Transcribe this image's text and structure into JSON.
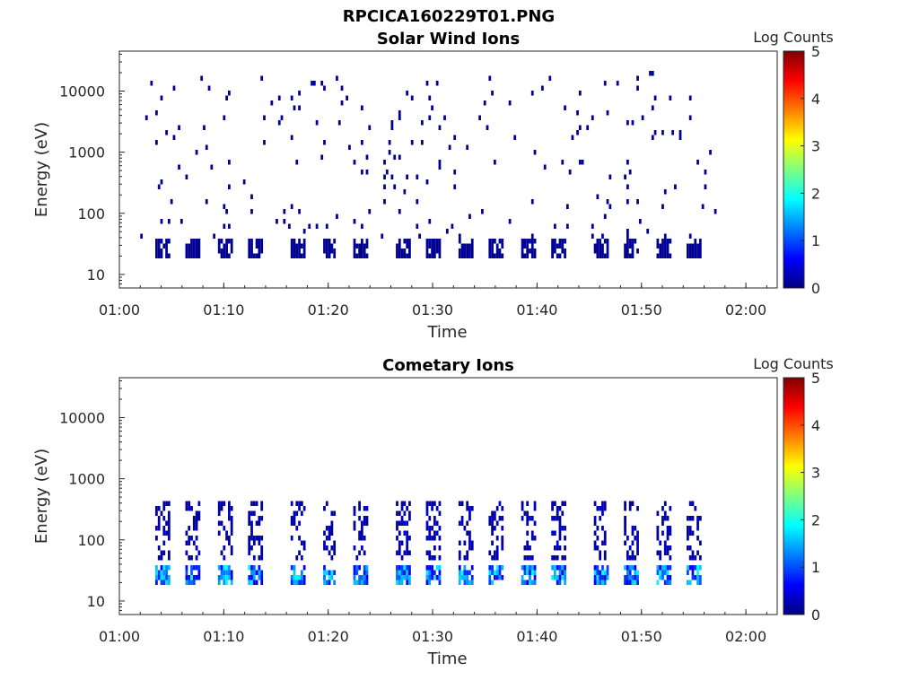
{
  "figure": {
    "title": "RPCICA160229T01.PNG"
  },
  "colorscale": [
    "#00007f",
    "#0000ff",
    "#007fff",
    "#00ffff",
    "#7fff7f",
    "#ffff00",
    "#ff7f00",
    "#ff0000",
    "#7f0000"
  ],
  "chart_data": [
    {
      "type": "heatmap",
      "title": "Solar Wind Ions",
      "xlabel": "Time",
      "ylabel": "Energy (eV)",
      "y_scale": "log",
      "ylim": [
        6,
        45000
      ],
      "xlim": [
        "01:00",
        "02:03"
      ],
      "x_ticks": [
        "01:00",
        "01:10",
        "01:20",
        "01:30",
        "01:40",
        "01:50",
        "02:00"
      ],
      "y_ticks": [
        "10",
        "100",
        "1000",
        "10000"
      ],
      "colorbar": {
        "title": "Log Counts",
        "min": 0,
        "max": 5,
        "ticks": [
          "0",
          "1",
          "2",
          "3",
          "4",
          "5"
        ]
      },
      "data_range": [
        "01:02",
        "01:57"
      ],
      "signal": {
        "low_band_energy_eV": [
          17,
          40
        ],
        "low_band_log_counts": 0.1,
        "sparse_energy_eV": [
          40,
          20000
        ],
        "sparse_log_counts": 0.1,
        "bursts": [
          "01:04",
          "01:07",
          "01:10",
          "01:13",
          "01:17",
          "01:20",
          "01:23",
          "01:27",
          "01:30",
          "01:33",
          "01:36",
          "01:39",
          "01:42",
          "01:46",
          "01:49",
          "01:52",
          "01:55"
        ]
      }
    },
    {
      "type": "heatmap",
      "title": "Cometary Ions",
      "xlabel": "Time",
      "ylabel": "Energy (eV)",
      "y_scale": "log",
      "ylim": [
        6,
        45000
      ],
      "xlim": [
        "01:00",
        "02:03"
      ],
      "x_ticks": [
        "01:00",
        "01:10",
        "01:20",
        "01:30",
        "01:40",
        "01:50",
        "02:00"
      ],
      "y_ticks": [
        "10",
        "100",
        "1000",
        "10000"
      ],
      "colorbar": {
        "title": "Log Counts",
        "min": 0,
        "max": 5,
        "ticks": [
          "0",
          "1",
          "2",
          "3",
          "4",
          "5"
        ]
      },
      "data_range": [
        "01:02",
        "01:57"
      ],
      "signal": {
        "low_band_energy_eV": [
          17,
          42
        ],
        "low_band_log_counts": 1.3,
        "upper_band_energy_eV": [
          45,
          400
        ],
        "upper_band_log_counts": 0.2,
        "bursts": [
          "01:04",
          "01:07",
          "01:10",
          "01:13",
          "01:17",
          "01:20",
          "01:23",
          "01:27",
          "01:30",
          "01:33",
          "01:36",
          "01:39",
          "01:42",
          "01:46",
          "01:49",
          "01:52",
          "01:55"
        ]
      }
    }
  ]
}
